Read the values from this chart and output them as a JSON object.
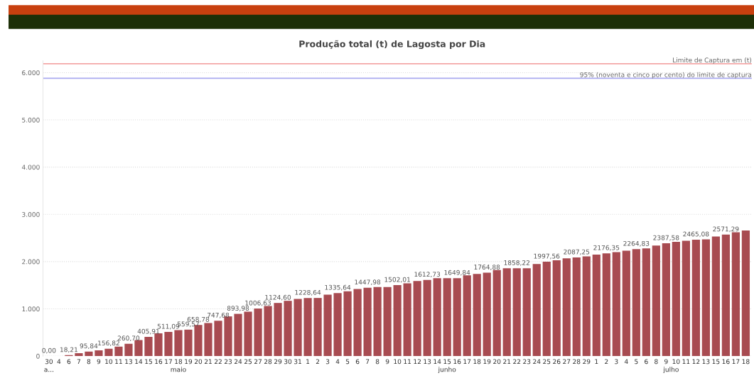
{
  "chart_data": {
    "type": "bar",
    "title": "Produção total (t) de Lagosta por Dia",
    "categories": [
      "30",
      "4",
      "6",
      "7",
      "8",
      "9",
      "10",
      "11",
      "13",
      "14",
      "15",
      "16",
      "17",
      "18",
      "19",
      "20",
      "21",
      "22",
      "23",
      "24",
      "25",
      "27",
      "28",
      "29",
      "30",
      "31",
      "1",
      "2",
      "3",
      "4",
      "5",
      "6",
      "7",
      "8",
      "9",
      "10",
      "11",
      "12",
      "13",
      "14",
      "15",
      "16",
      "17",
      "18",
      "19",
      "20",
      "21",
      "22",
      "23",
      "24",
      "25",
      "26",
      "27",
      "28",
      "29",
      "1",
      "2",
      "3",
      "4",
      "5",
      "6",
      "8",
      "9",
      "10",
      "11",
      "12",
      "13",
      "15",
      "16",
      "17",
      "18"
    ],
    "values": [
      0,
      0,
      18.21,
      60,
      95.84,
      120,
      156.82,
      200,
      260.7,
      340,
      405.91,
      480,
      511.09,
      550,
      559.57,
      658.78,
      700,
      747.68,
      840,
      893.98,
      940,
      1006.63,
      1060,
      1124.6,
      1170,
      1210,
      1228.64,
      1230,
      1300,
      1335.64,
      1370,
      1420,
      1447.98,
      1460,
      1460,
      1502.01,
      1540,
      1590,
      1612.73,
      1650,
      1650,
      1649.84,
      1710,
      1740,
      1764.88,
      1820,
      1860,
      1858.22,
      1860,
      1950,
      1997.56,
      2030,
      2070,
      2087.25,
      2110,
      2150,
      2176.35,
      2200,
      2230,
      2264.83,
      2280,
      2340,
      2387.58,
      2420,
      2440,
      2465.08,
      2470,
      2530,
      2571.29,
      2620,
      2660
    ],
    "value_labels": [
      "0,00",
      null,
      "18,21",
      null,
      "95,84",
      null,
      "156,82",
      null,
      "260,70",
      null,
      "405,91",
      null,
      "511,09",
      null,
      "559,57",
      "658,78",
      null,
      "747,68",
      null,
      "893,98",
      null,
      "1006,63",
      null,
      "1124,60",
      null,
      null,
      "1228,64",
      null,
      null,
      "1335,64",
      null,
      null,
      "1447,98",
      null,
      null,
      "1502,01",
      null,
      null,
      "1612,73",
      null,
      null,
      "1649,84",
      null,
      null,
      "1764,88",
      null,
      null,
      "1858,22",
      null,
      null,
      "1997,56",
      null,
      null,
      "2087,25",
      null,
      null,
      "2176,35",
      null,
      null,
      "2264,83",
      null,
      null,
      "2387,58",
      null,
      null,
      "2465,08",
      null,
      null,
      "2571,29",
      null,
      null
    ],
    "color": "#a84b51",
    "ylim": [
      0,
      6250
    ],
    "yticks": [
      {
        "value": 0,
        "label": "0"
      },
      {
        "value": 1000,
        "label": "1.000"
      },
      {
        "value": 2000,
        "label": "2.000"
      },
      {
        "value": 3000,
        "label": "3.000"
      },
      {
        "value": 4000,
        "label": "4.000"
      },
      {
        "value": 5000,
        "label": "5.000"
      },
      {
        "value": 6000,
        "label": "6.000"
      }
    ],
    "grid": "y",
    "ref_lines": [
      {
        "axis": "y",
        "value": 6190,
        "label": "Limite de Captura em (t)",
        "color": "#f4a7a7"
      },
      {
        "axis": "y",
        "value": 5880,
        "label": "95% (noventa e cinco por cento) do limite de captura",
        "color": "#aaaaf0"
      }
    ],
    "annotations": [
      "a...",
      "maio",
      "junho",
      "julho"
    ]
  }
}
